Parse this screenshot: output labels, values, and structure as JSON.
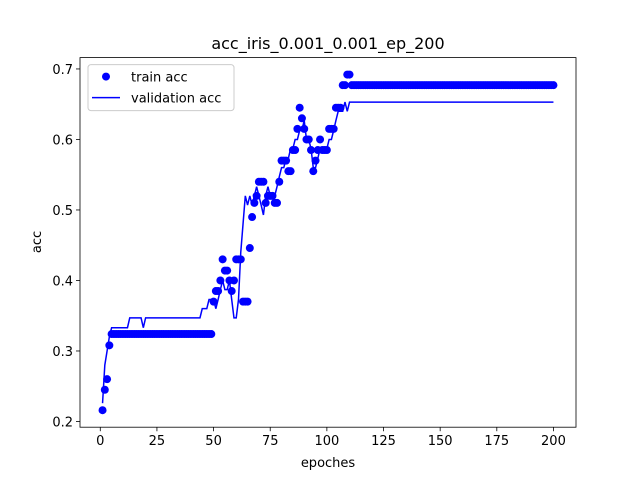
{
  "chart_data": {
    "type": "line",
    "title": "acc_iris_0.001_0.001_ep_200",
    "xlabel": "epoches",
    "ylabel": "acc",
    "xlim": [
      -8.95,
      209.95
    ],
    "ylim": [
      0.1919,
      0.7161
    ],
    "xticks": [
      0,
      25,
      50,
      75,
      100,
      125,
      150,
      175,
      200
    ],
    "yticks": [
      0.2,
      0.3,
      0.4,
      0.5,
      0.6,
      0.7
    ],
    "legend": "upper left",
    "x": [
      1,
      2,
      3,
      4,
      5,
      6,
      7,
      8,
      9,
      10,
      11,
      12,
      13,
      14,
      15,
      16,
      17,
      18,
      19,
      20,
      21,
      22,
      23,
      24,
      25,
      26,
      27,
      28,
      29,
      30,
      31,
      32,
      33,
      34,
      35,
      36,
      37,
      38,
      39,
      40,
      41,
      42,
      43,
      44,
      45,
      46,
      47,
      48,
      49,
      50,
      51,
      52,
      53,
      54,
      55,
      56,
      57,
      58,
      59,
      60,
      61,
      62,
      63,
      64,
      65,
      66,
      67,
      68,
      69,
      70,
      71,
      72,
      73,
      74,
      75,
      76,
      77,
      78,
      79,
      80,
      81,
      82,
      83,
      84,
      85,
      86,
      87,
      88,
      89,
      90,
      91,
      92,
      93,
      94,
      95,
      96,
      97,
      98,
      99,
      100,
      101,
      102,
      103,
      104,
      105,
      106,
      107,
      108,
      109,
      110,
      111,
      112,
      113,
      114,
      115,
      116,
      117,
      118,
      119,
      120,
      121,
      122,
      123,
      124,
      125,
      126,
      127,
      128,
      129,
      130,
      131,
      132,
      133,
      134,
      135,
      136,
      137,
      138,
      139,
      140,
      141,
      142,
      143,
      144,
      145,
      146,
      147,
      148,
      149,
      150,
      151,
      152,
      153,
      154,
      155,
      156,
      157,
      158,
      159,
      160,
      161,
      162,
      163,
      164,
      165,
      166,
      167,
      168,
      169,
      170,
      171,
      172,
      173,
      174,
      175,
      176,
      177,
      178,
      179,
      180,
      181,
      182,
      183,
      184,
      185,
      186,
      187,
      188,
      189,
      190,
      191,
      192,
      193,
      194,
      195,
      196,
      197,
      198,
      199,
      200
    ],
    "series": [
      {
        "name": "train acc",
        "color": "#0000ff",
        "mode": "markers",
        "values": [
          0.216,
          0.245,
          0.26,
          0.308,
          0.324,
          0.324,
          0.324,
          0.324,
          0.324,
          0.324,
          0.324,
          0.324,
          0.324,
          0.324,
          0.324,
          0.324,
          0.324,
          0.324,
          0.324,
          0.324,
          0.324,
          0.324,
          0.324,
          0.324,
          0.324,
          0.324,
          0.324,
          0.324,
          0.324,
          0.324,
          0.324,
          0.324,
          0.324,
          0.324,
          0.324,
          0.324,
          0.324,
          0.324,
          0.324,
          0.324,
          0.324,
          0.324,
          0.324,
          0.324,
          0.324,
          0.324,
          0.324,
          0.324,
          0.324,
          0.37,
          0.385,
          0.385,
          0.4,
          0.43,
          0.414,
          0.414,
          0.4,
          0.385,
          0.4,
          0.43,
          0.43,
          0.43,
          0.37,
          0.37,
          0.37,
          0.446,
          0.49,
          0.51,
          0.52,
          0.54,
          0.54,
          0.54,
          0.51,
          0.52,
          0.52,
          0.52,
          0.51,
          0.51,
          0.54,
          0.57,
          0.57,
          0.57,
          0.555,
          0.555,
          0.585,
          0.585,
          0.615,
          0.645,
          0.63,
          0.615,
          0.6,
          0.6,
          0.585,
          0.555,
          0.57,
          0.585,
          0.6,
          0.585,
          0.585,
          0.585,
          0.615,
          0.615,
          0.615,
          0.645,
          0.645,
          0.645,
          0.677,
          0.677,
          0.692,
          0.692,
          0.677,
          0.677,
          0.677,
          0.677,
          0.677,
          0.677,
          0.677,
          0.677,
          0.677,
          0.677,
          0.677,
          0.677,
          0.677,
          0.677,
          0.677,
          0.677,
          0.677,
          0.677,
          0.677,
          0.677,
          0.677,
          0.677,
          0.677,
          0.677,
          0.677,
          0.677,
          0.677,
          0.677,
          0.677,
          0.677,
          0.677,
          0.677,
          0.677,
          0.677,
          0.677,
          0.677,
          0.677,
          0.677,
          0.677,
          0.677,
          0.677,
          0.677,
          0.677,
          0.677,
          0.677,
          0.677,
          0.677,
          0.677,
          0.677,
          0.677,
          0.677,
          0.677,
          0.677,
          0.677,
          0.677,
          0.677,
          0.677,
          0.677,
          0.677,
          0.677,
          0.677,
          0.677,
          0.677,
          0.677,
          0.677,
          0.677,
          0.677,
          0.677,
          0.677,
          0.677,
          0.677,
          0.677,
          0.677,
          0.677,
          0.677,
          0.677,
          0.677,
          0.677,
          0.677,
          0.677,
          0.677,
          0.677,
          0.677,
          0.677,
          0.677,
          0.677,
          0.677,
          0.677,
          0.677,
          0.677
        ]
      },
      {
        "name": "validation acc",
        "color": "#0000ff",
        "mode": "lines",
        "values": [
          0.226,
          0.28,
          0.3,
          0.32,
          0.333,
          0.333,
          0.333,
          0.333,
          0.333,
          0.333,
          0.333,
          0.333,
          0.347,
          0.347,
          0.347,
          0.347,
          0.347,
          0.347,
          0.333,
          0.347,
          0.347,
          0.347,
          0.347,
          0.347,
          0.347,
          0.347,
          0.347,
          0.347,
          0.347,
          0.347,
          0.347,
          0.347,
          0.347,
          0.347,
          0.347,
          0.347,
          0.347,
          0.347,
          0.347,
          0.347,
          0.347,
          0.347,
          0.347,
          0.347,
          0.36,
          0.36,
          0.36,
          0.373,
          0.373,
          0.373,
          0.36,
          0.373,
          0.387,
          0.4,
          0.387,
          0.387,
          0.4,
          0.373,
          0.347,
          0.347,
          0.373,
          0.44,
          0.48,
          0.52,
          0.507,
          0.52,
          0.507,
          0.52,
          0.533,
          0.52,
          0.507,
          0.493,
          0.52,
          0.533,
          0.52,
          0.52,
          0.52,
          0.533,
          0.547,
          0.56,
          0.56,
          0.573,
          0.573,
          0.587,
          0.587,
          0.6,
          0.6,
          0.613,
          0.613,
          0.627,
          0.6,
          0.6,
          0.587,
          0.56,
          0.56,
          0.573,
          0.587,
          0.587,
          0.587,
          0.587,
          0.6,
          0.6,
          0.613,
          0.627,
          0.64,
          0.64,
          0.64,
          0.653,
          0.64,
          0.653,
          0.653,
          0.653,
          0.653,
          0.653,
          0.653,
          0.653,
          0.653,
          0.653,
          0.653,
          0.653,
          0.653,
          0.653,
          0.653,
          0.653,
          0.653,
          0.653,
          0.653,
          0.653,
          0.653,
          0.653,
          0.653,
          0.653,
          0.653,
          0.653,
          0.653,
          0.653,
          0.653,
          0.653,
          0.653,
          0.653,
          0.653,
          0.653,
          0.653,
          0.653,
          0.653,
          0.653,
          0.653,
          0.653,
          0.653,
          0.653,
          0.653,
          0.653,
          0.653,
          0.653,
          0.653,
          0.653,
          0.653,
          0.653,
          0.653,
          0.653,
          0.653,
          0.653,
          0.653,
          0.653,
          0.653,
          0.653,
          0.653,
          0.653,
          0.653,
          0.653,
          0.653,
          0.653,
          0.653,
          0.653,
          0.653,
          0.653,
          0.653,
          0.653,
          0.653,
          0.653,
          0.653,
          0.653,
          0.653,
          0.653,
          0.653,
          0.653,
          0.653,
          0.653,
          0.653,
          0.653,
          0.653,
          0.653,
          0.653,
          0.653,
          0.653,
          0.653,
          0.653,
          0.653,
          0.653,
          0.653
        ]
      }
    ]
  }
}
